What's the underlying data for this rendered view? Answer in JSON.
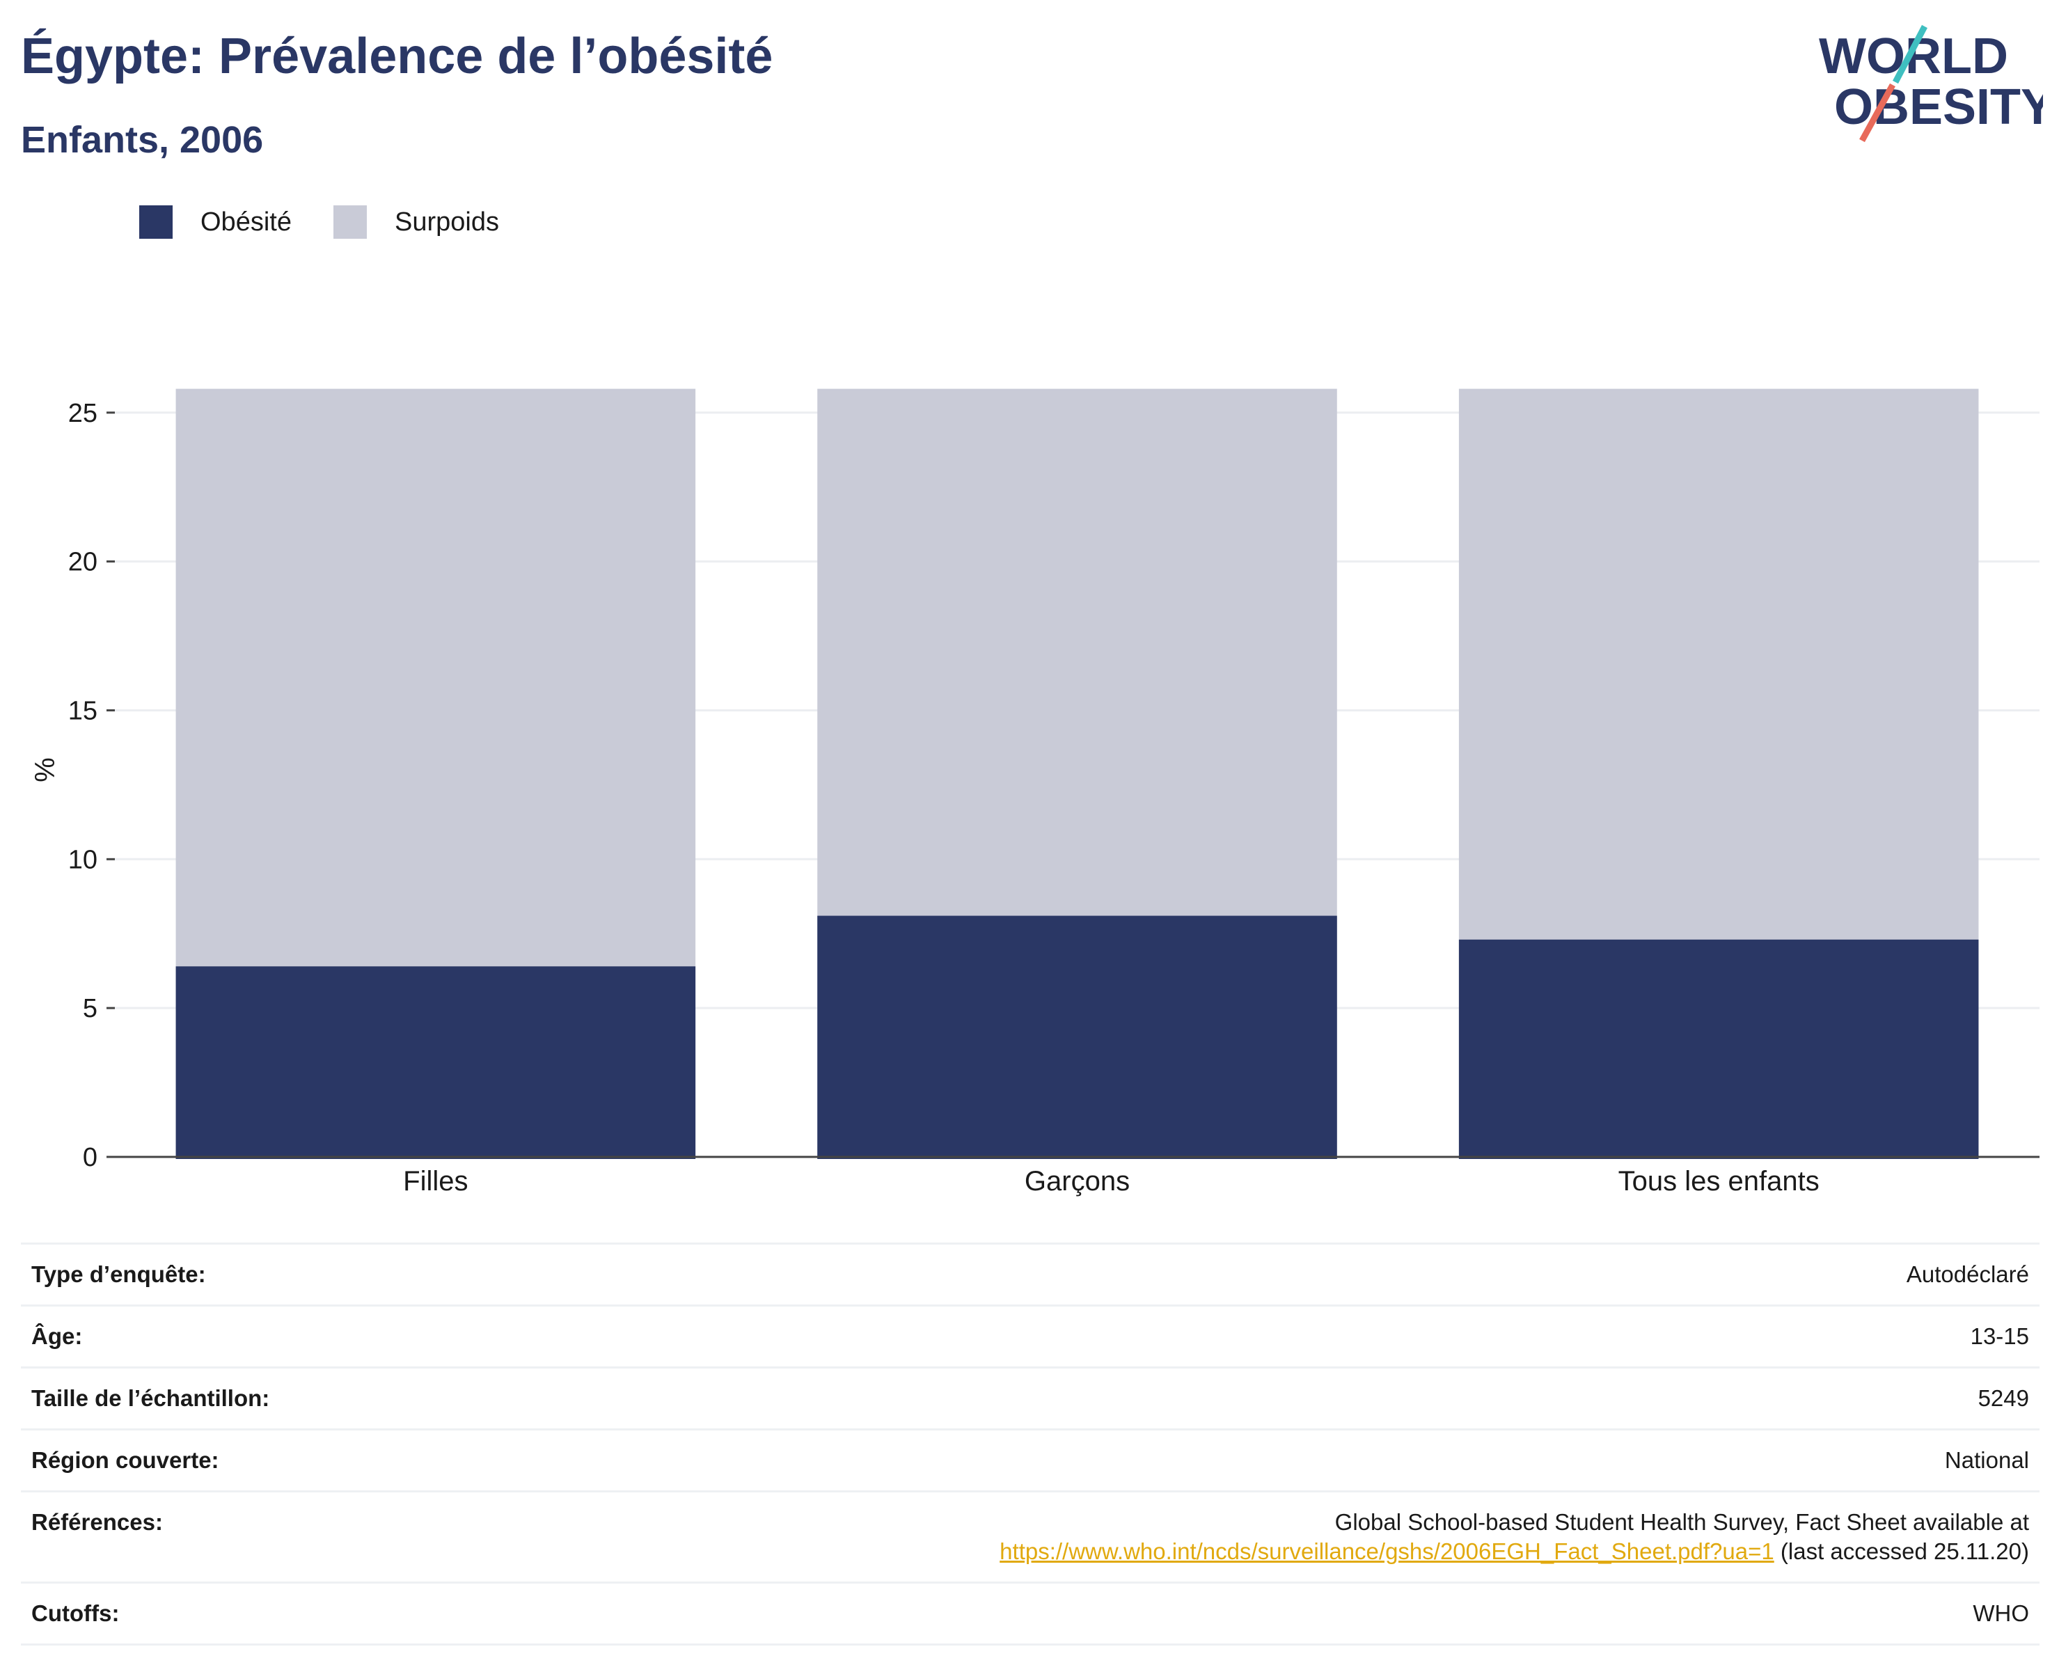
{
  "header": {
    "title": "Égypte: Prévalence de l’obésité",
    "subtitle": "Enfants, 2006"
  },
  "logo": {
    "line1": "WORLD",
    "line2": "OBESITY",
    "slash_colors": [
      "#3fbfc0",
      "#e86a5a"
    ],
    "text_color": "#2a3765"
  },
  "colors": {
    "obesity": "#2a3765",
    "overweight": "#c9cbd7",
    "grid": "#eceef1",
    "axis": "#444444",
    "link": "#e1a90f"
  },
  "chart_data": {
    "type": "bar",
    "stacked": "overlay",
    "categories": [
      "Filles",
      "Garçons",
      "Tous les enfants"
    ],
    "series": [
      {
        "name": "Obésité",
        "values": [
          6.4,
          8.1,
          7.3
        ]
      },
      {
        "name": "Surpoids",
        "values": [
          25.8,
          25.8,
          25.8
        ]
      }
    ],
    "ylabel": "%",
    "xlabel": "",
    "ylim": [
      0,
      26
    ],
    "yticks": [
      0,
      5,
      10,
      15,
      20,
      25
    ],
    "grid": true,
    "legend_position": "top-left"
  },
  "info": [
    {
      "key": "Type d’enquête:",
      "value": "Autodéclaré"
    },
    {
      "key": "Âge:",
      "value": "13-15"
    },
    {
      "key": "Taille de l’échantillon:",
      "value": "5249"
    },
    {
      "key": "Région couverte:",
      "value": "National"
    },
    {
      "key": "Références:",
      "value_line1": "Global School-based Student Health Survey, Fact Sheet available at",
      "link": "https://www.who.int/ncds/surveillance/gshs/2006EGH_Fact_Sheet.pdf?ua=1",
      "after_link": "(last accessed 25.11.20)"
    },
    {
      "key": "Cutoffs:",
      "value": "WHO"
    }
  ]
}
